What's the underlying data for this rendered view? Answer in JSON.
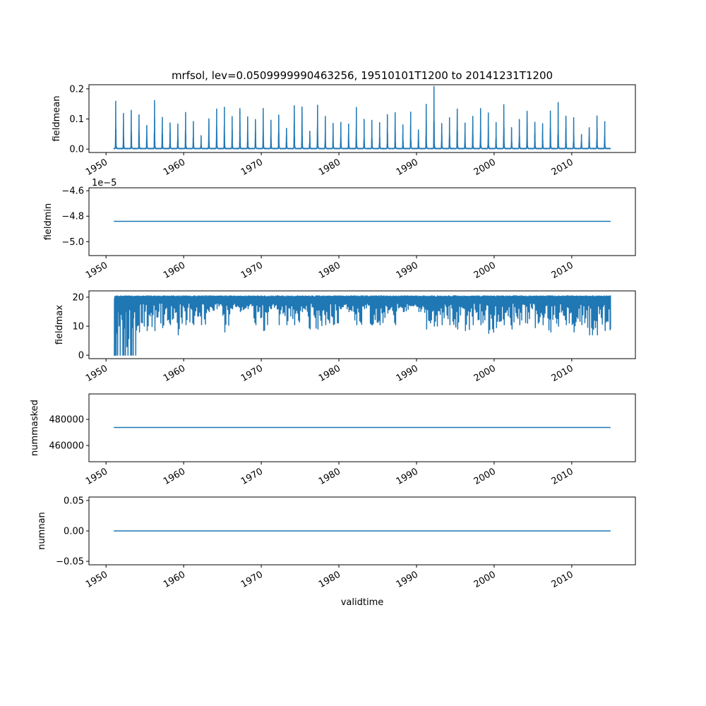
{
  "chart_data": {
    "type": "line",
    "title": "mrfsol, lev=0.0509999990463256, 19510101T1200 to 20141231T1200",
    "xlabel": "validtime",
    "x_range": [
      1951.0,
      2015.0
    ],
    "xlim": [
      1947.8,
      2018.2
    ],
    "xticks": [
      "1950",
      "1960",
      "1970",
      "1980",
      "1990",
      "2000",
      "2010"
    ],
    "line_color": "#1f77b4",
    "panels": [
      {
        "ylabel": "fieldmean",
        "ylim": [
          -0.0113,
          0.2137
        ],
        "yticks": [
          {
            "v": 0.0,
            "t": "0.0"
          },
          {
            "v": 0.1,
            "t": "0.1"
          },
          {
            "v": 0.2,
            "t": "0.2"
          }
        ],
        "kind": "annual_peaks",
        "baseline": 0.001,
        "annual_peak_years": [
          1951,
          1952,
          1953,
          1954,
          1955,
          1956,
          1957,
          1958,
          1959,
          1960,
          1961,
          1962,
          1963,
          1964,
          1965,
          1966,
          1967,
          1968,
          1969,
          1970,
          1971,
          1972,
          1973,
          1974,
          1975,
          1976,
          1977,
          1978,
          1979,
          1980,
          1981,
          1982,
          1983,
          1984,
          1985,
          1986,
          1987,
          1988,
          1989,
          1990,
          1991,
          1992,
          1993,
          1994,
          1995,
          1996,
          1997,
          1998,
          1999,
          2000,
          2001,
          2002,
          2003,
          2004,
          2005,
          2006,
          2007,
          2008,
          2009,
          2010,
          2011,
          2012,
          2013,
          2014
        ],
        "annual_peaks": [
          0.157,
          0.117,
          0.127,
          0.112,
          0.076,
          0.159,
          0.103,
          0.085,
          0.081,
          0.12,
          0.09,
          0.043,
          0.099,
          0.131,
          0.137,
          0.106,
          0.133,
          0.105,
          0.096,
          0.133,
          0.094,
          0.111,
          0.067,
          0.142,
          0.138,
          0.058,
          0.144,
          0.106,
          0.084,
          0.088,
          0.081,
          0.137,
          0.097,
          0.094,
          0.086,
          0.113,
          0.119,
          0.079,
          0.121,
          0.062,
          0.147,
          0.207,
          0.083,
          0.102,
          0.132,
          0.085,
          0.107,
          0.133,
          0.118,
          0.087,
          0.145,
          0.07,
          0.097,
          0.123,
          0.087,
          0.083,
          0.125,
          0.153,
          0.108,
          0.103,
          0.046,
          0.069,
          0.108,
          0.089
        ]
      },
      {
        "ylabel": "fieldmin",
        "offset_text": "1e−5",
        "ylim": [
          -5.109,
          -4.577
        ],
        "yticks": [
          {
            "v": -5.0,
            "t": "−5.0"
          },
          {
            "v": -4.8,
            "t": "−4.8"
          },
          {
            "v": -4.6,
            "t": "−4.6"
          }
        ],
        "kind": "constant",
        "value": -4.84
      },
      {
        "ylabel": "fieldmax",
        "ylim": [
          -1.19,
          22.18
        ],
        "yticks": [
          {
            "v": 0,
            "t": "0"
          },
          {
            "v": 10,
            "t": "10"
          },
          {
            "v": 20,
            "t": "20"
          }
        ],
        "kind": "annual_dips",
        "plateau": 20.5,
        "annual_minima": [
          0,
          0,
          0,
          8,
          8.5,
          8.5,
          9.5,
          10.5,
          7,
          10.5,
          10.5,
          10.5,
          15,
          16,
          8,
          16,
          15,
          16,
          10.5,
          8.5,
          16,
          10.5,
          10.5,
          10.5,
          15,
          9,
          9,
          10.5,
          10.5,
          16,
          15,
          10.5,
          16,
          10.5,
          10.5,
          14.5,
          10.5,
          15,
          17,
          15,
          9,
          10,
          10.5,
          10.5,
          9,
          8.5,
          10.5,
          10.5,
          7.5,
          9.5,
          10.5,
          9,
          10.5,
          11,
          9.5,
          10.5,
          8,
          10,
          10.5,
          8,
          10.5,
          7,
          7,
          8.5
        ],
        "final_value": 9
      },
      {
        "ylabel": "nummasked",
        "ylim": [
          447556,
          499556
        ],
        "yticks": [
          {
            "v": 460000,
            "t": "460000"
          },
          {
            "v": 480000,
            "t": "480000"
          }
        ],
        "kind": "constant",
        "value": 473800
      },
      {
        "ylabel": "numnan",
        "ylim": [
          -0.0557,
          0.0557
        ],
        "yticks": [
          {
            "v": -0.05,
            "t": "−0.05"
          },
          {
            "v": 0.0,
            "t": "0.00"
          },
          {
            "v": 0.05,
            "t": "0.05"
          }
        ],
        "kind": "constant",
        "value": 0
      }
    ]
  }
}
